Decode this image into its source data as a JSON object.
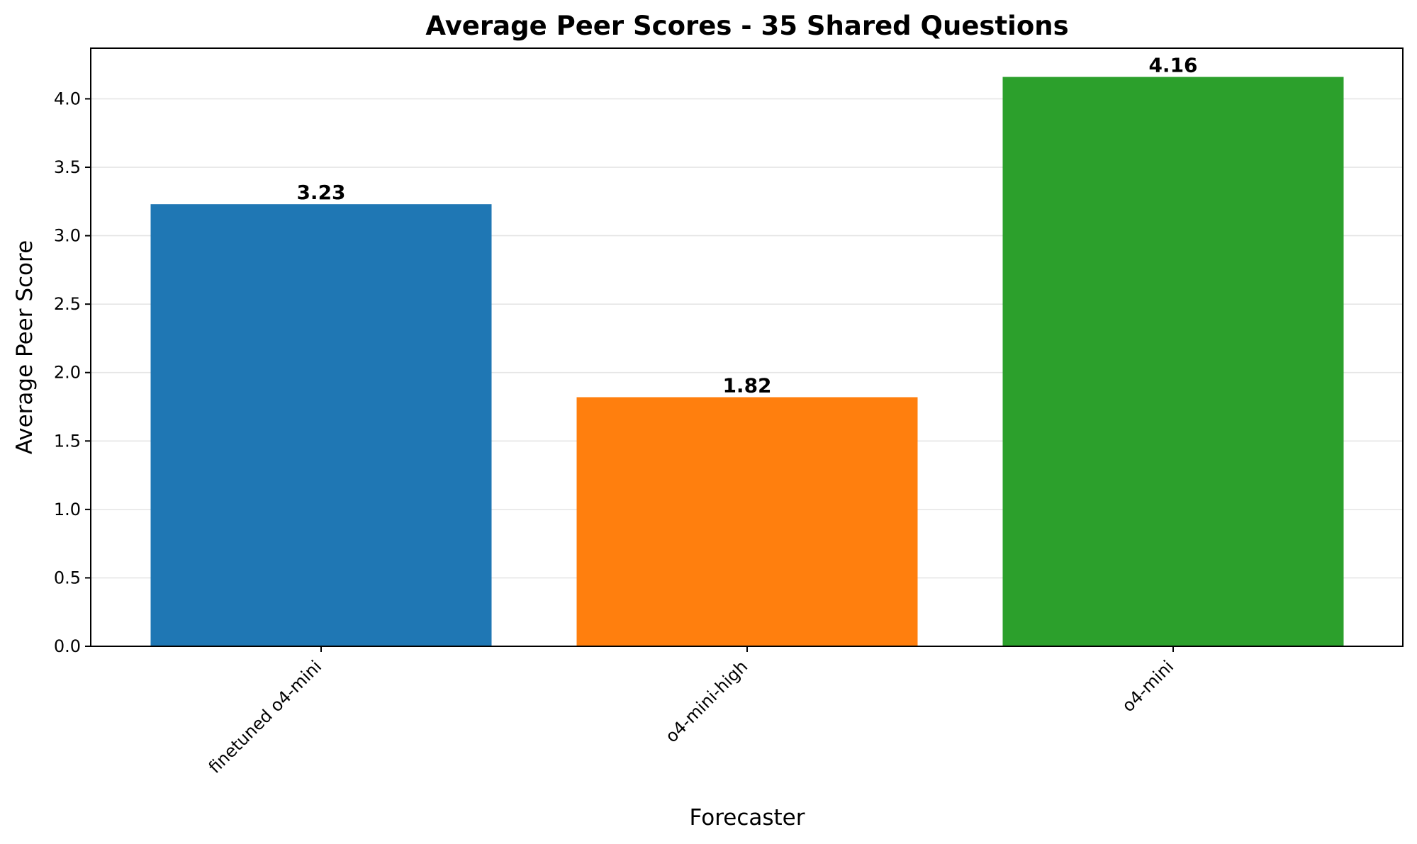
{
  "chart_data": {
    "type": "bar",
    "title": "Average Peer Scores - 35 Shared Questions",
    "xlabel": "Forecaster",
    "ylabel": "Average Peer Score",
    "categories": [
      "finetuned o4-mini",
      "o4-mini-high",
      "o4-mini"
    ],
    "values": [
      3.23,
      1.82,
      4.16
    ],
    "value_labels": [
      "3.23",
      "1.82",
      "4.16"
    ],
    "colors": [
      "#1f77b4",
      "#ff7f0e",
      "#2ca02c"
    ],
    "ylim": [
      0,
      4.37
    ],
    "yticks": [
      0.0,
      0.5,
      1.0,
      1.5,
      2.0,
      2.5,
      3.0,
      3.5,
      4.0
    ],
    "ytick_labels": [
      "0.0",
      "0.5",
      "1.0",
      "1.5",
      "2.0",
      "2.5",
      "3.0",
      "3.5",
      "4.0"
    ],
    "grid": "y-axis",
    "legend": "none"
  }
}
